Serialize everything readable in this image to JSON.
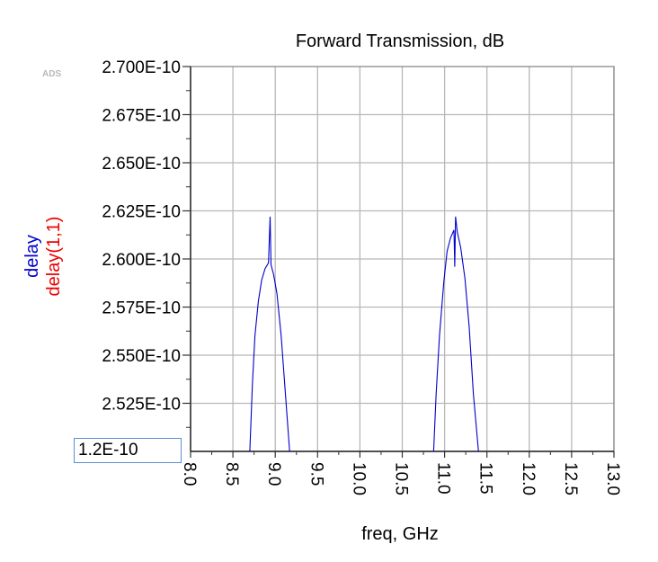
{
  "app": {
    "logo": "ADS"
  },
  "y_min_field": {
    "value": "1.2E-10"
  },
  "chart_data": {
    "type": "line",
    "title": "Forward Transmission, dB",
    "xlabel": "freq, GHz",
    "ylabels": [
      {
        "text": "delay",
        "color": "#0000cc"
      },
      {
        "text": "delay(1,1)",
        "color": "#ee0000"
      }
    ],
    "xlim": [
      8.0,
      13.0
    ],
    "ylim": [
      2.5e-10,
      2.7e-10
    ],
    "x_ticks": [
      "8.0",
      "8.5",
      "9.0",
      "9.5",
      "10.0",
      "10.5",
      "11.0",
      "11.5",
      "12.0",
      "12.5",
      "13.0"
    ],
    "y_ticks": [
      {
        "value": 2.525e-10,
        "label": "2.525E-10"
      },
      {
        "value": 2.55e-10,
        "label": "2.550E-10"
      },
      {
        "value": 2.575e-10,
        "label": "2.575E-10"
      },
      {
        "value": 2.6e-10,
        "label": "2.600E-10"
      },
      {
        "value": 2.625e-10,
        "label": "2.625E-10"
      },
      {
        "value": 2.65e-10,
        "label": "2.650E-10"
      },
      {
        "value": 2.675e-10,
        "label": "2.675E-10"
      },
      {
        "value": 2.7e-10,
        "label": "2.700E-10"
      }
    ],
    "grid": true,
    "series": [
      {
        "name": "delay",
        "color": "#0000cc",
        "segments": [
          [
            [
              8.7,
              2.5e-10
            ],
            [
              8.73,
              2.535e-10
            ],
            [
              8.76,
              2.56e-10
            ],
            [
              8.8,
              2.578e-10
            ],
            [
              8.84,
              2.589e-10
            ],
            [
              8.88,
              2.595e-10
            ],
            [
              8.92,
              2.598e-10
            ],
            [
              8.94,
              2.622e-10
            ],
            [
              8.95,
              2.597e-10
            ],
            [
              8.98,
              2.592e-10
            ],
            [
              9.02,
              2.582e-10
            ],
            [
              9.07,
              2.56e-10
            ],
            [
              9.12,
              2.53e-10
            ],
            [
              9.17,
              2.5e-10
            ]
          ],
          [
            [
              10.87,
              2.5e-10
            ],
            [
              10.9,
              2.53e-10
            ],
            [
              10.94,
              2.56e-10
            ],
            [
              10.99,
              2.588e-10
            ],
            [
              11.03,
              2.604e-10
            ],
            [
              11.07,
              2.611e-10
            ],
            [
              11.11,
              2.615e-10
            ],
            [
              11.12,
              2.596e-10
            ],
            [
              11.13,
              2.622e-10
            ],
            [
              11.15,
              2.614e-10
            ],
            [
              11.19,
              2.606e-10
            ],
            [
              11.24,
              2.59e-10
            ],
            [
              11.29,
              2.565e-10
            ],
            [
              11.34,
              2.53e-10
            ],
            [
              11.4,
              2.5e-10
            ]
          ]
        ]
      }
    ]
  }
}
